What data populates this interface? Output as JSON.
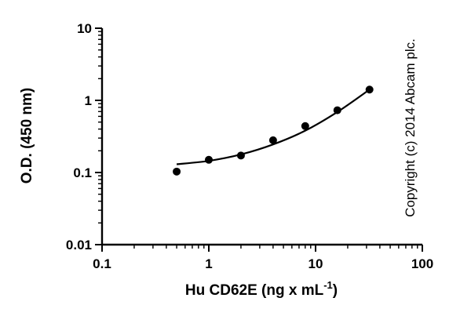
{
  "chart_data": {
    "type": "scatter",
    "title": "",
    "xlabel": "Hu CD62E (ng x mL",
    "xlabel_superscript": "-1",
    "xlabel_suffix": ")",
    "ylabel": "O.D. (450 nm)",
    "xscale": "log",
    "yscale": "log",
    "xlim": [
      0.1,
      100
    ],
    "ylim": [
      0.01,
      10
    ],
    "x_ticks": [
      0.1,
      1,
      10,
      100
    ],
    "x_tick_labels": [
      "0.1",
      "1",
      "10",
      "100"
    ],
    "y_ticks": [
      0.01,
      0.1,
      1,
      10
    ],
    "y_tick_labels": [
      "0.01",
      "0.1",
      "1",
      "10"
    ],
    "grid": false,
    "series": [
      {
        "x": [
          0.5,
          1,
          2,
          4,
          8,
          16,
          32
        ],
        "y": [
          0.103,
          0.15,
          0.172,
          0.28,
          0.44,
          0.73,
          1.41
        ]
      }
    ],
    "fit_curve": {
      "x": [
        0.5,
        1,
        2,
        4,
        8,
        16,
        32
      ],
      "y": [
        0.13,
        0.145,
        0.178,
        0.245,
        0.38,
        0.69,
        1.41
      ]
    },
    "annotation": "Copyright (c) 2014 Abcam plc."
  }
}
